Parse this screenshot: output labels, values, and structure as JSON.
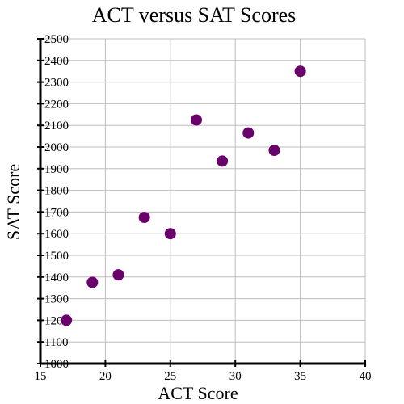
{
  "chart_data": {
    "type": "scatter",
    "title": "ACT versus SAT Scores",
    "xlabel": "ACT Score",
    "ylabel": "SAT Score",
    "xlim": [
      15,
      40
    ],
    "ylim": [
      1000,
      2500
    ],
    "xticks": [
      15,
      20,
      25,
      30,
      35,
      40
    ],
    "yticks": [
      1000,
      1100,
      1200,
      1300,
      1400,
      1500,
      1600,
      1700,
      1800,
      1900,
      2000,
      2100,
      2200,
      2300,
      2400,
      2500
    ],
    "xtick_labels": [
      "15",
      "20",
      "25",
      "30",
      "35",
      "40"
    ],
    "ytick_labels": [
      "1000",
      "1100",
      "1200",
      "1300",
      "1400",
      "1500",
      "1600",
      "1700",
      "1800",
      "1900",
      "2000",
      "2100",
      "2200",
      "2300",
      "2400",
      "2500"
    ],
    "grid": true,
    "point_color": "#6a006a",
    "points": [
      {
        "x": 17,
        "y": 1200
      },
      {
        "x": 19,
        "y": 1375
      },
      {
        "x": 21,
        "y": 1410
      },
      {
        "x": 23,
        "y": 1675
      },
      {
        "x": 25,
        "y": 1600
      },
      {
        "x": 27,
        "y": 2125
      },
      {
        "x": 29,
        "y": 1935
      },
      {
        "x": 31,
        "y": 2065
      },
      {
        "x": 33,
        "y": 1985
      },
      {
        "x": 35,
        "y": 2350
      }
    ]
  }
}
